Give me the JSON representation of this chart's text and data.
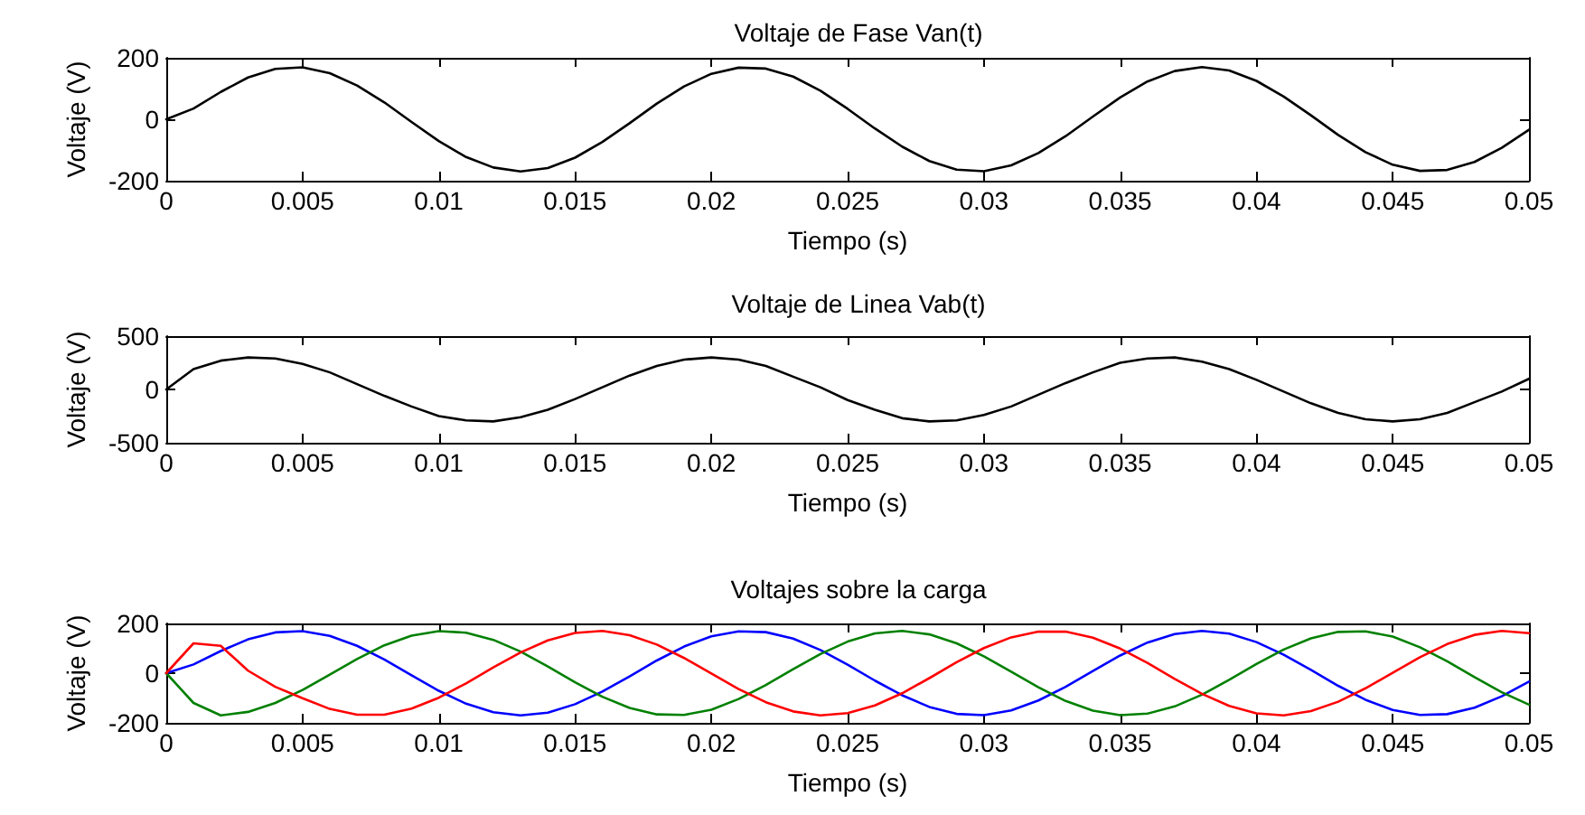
{
  "chart_data": [
    {
      "type": "line",
      "title": "Voltaje de Fase Van(t)",
      "xlabel": "Tiempo (s)",
      "ylabel": "Voltaje (V)",
      "xlim": [
        0,
        0.05
      ],
      "xticks": [
        0,
        0.005,
        0.01,
        0.015,
        0.02,
        0.025,
        0.03,
        0.035,
        0.04,
        0.045,
        0.05
      ],
      "ylim": [
        -200,
        200
      ],
      "yticks": [
        -200,
        0,
        200
      ],
      "marker": "none",
      "line_style": "solid",
      "x": [
        0,
        0.001,
        0.002,
        0.003,
        0.004,
        0.005,
        0.006,
        0.007,
        0.008,
        0.009,
        0.01,
        0.011,
        0.012,
        0.013,
        0.014,
        0.015,
        0.016,
        0.017,
        0.018,
        0.019,
        0.02,
        0.021,
        0.022,
        0.023,
        0.024,
        0.025,
        0.026,
        0.027,
        0.028,
        0.029,
        0.03,
        0.031,
        0.032,
        0.033,
        0.034,
        0.035,
        0.036,
        0.037,
        0.038,
        0.039,
        0.04,
        0.041,
        0.042,
        0.043,
        0.044,
        0.045,
        0.046,
        0.047,
        0.048,
        0.049,
        0.05
      ],
      "series": [
        {
          "color": "#000000",
          "values": [
            0,
            35,
            89,
            136,
            164,
            169,
            150,
            110,
            55,
            -9,
            -71,
            -123,
            -157,
            -170,
            -159,
            -125,
            -74,
            -13,
            51,
            107,
            148,
            168,
            165,
            139,
            93,
            34,
            -30,
            -89,
            -136,
            -164,
            -169,
            -150,
            -110,
            -55,
            9,
            71,
            123,
            157,
            170,
            159,
            125,
            74,
            13,
            -51,
            -107,
            -148,
            -168,
            -165,
            -139,
            -93,
            -34
          ]
        }
      ]
    },
    {
      "type": "line",
      "title": "Voltaje de Linea Vab(t)",
      "xlabel": "Tiempo (s)",
      "ylabel": "Voltaje (V)",
      "xlim": [
        0,
        0.05
      ],
      "xticks": [
        0,
        0.005,
        0.01,
        0.015,
        0.02,
        0.025,
        0.03,
        0.035,
        0.04,
        0.045,
        0.05
      ],
      "ylim": [
        -500,
        500
      ],
      "yticks": [
        -500,
        0,
        500
      ],
      "marker": "none",
      "line_style": "solid",
      "x": [
        0,
        0.001,
        0.002,
        0.003,
        0.004,
        0.005,
        0.006,
        0.007,
        0.008,
        0.009,
        0.01,
        0.011,
        0.012,
        0.013,
        0.014,
        0.015,
        0.016,
        0.017,
        0.018,
        0.019,
        0.02,
        0.021,
        0.022,
        0.023,
        0.024,
        0.025,
        0.026,
        0.027,
        0.028,
        0.029,
        0.03,
        0.031,
        0.032,
        0.033,
        0.034,
        0.035,
        0.036,
        0.037,
        0.038,
        0.039,
        0.04,
        0.041,
        0.042,
        0.043,
        0.044,
        0.045,
        0.046,
        0.047,
        0.048,
        0.049,
        0.05
      ],
      "series": [
        {
          "color": "#000000",
          "values": [
            0,
            190,
            270,
            300,
            290,
            240,
            160,
            50,
            -60,
            -160,
            -250,
            -290,
            -300,
            -260,
            -190,
            -90,
            20,
            130,
            220,
            280,
            300,
            280,
            220,
            120,
            20,
            -100,
            -190,
            -270,
            -300,
            -290,
            -240,
            -160,
            -50,
            60,
            160,
            250,
            290,
            300,
            260,
            190,
            90,
            -20,
            -130,
            -220,
            -280,
            -300,
            -280,
            -220,
            -120,
            -20,
            100
          ]
        }
      ]
    },
    {
      "type": "line",
      "title": "Voltajes sobre la carga",
      "xlabel": "Tiempo (s)",
      "ylabel": "Voltaje (V)",
      "xlim": [
        0,
        0.05
      ],
      "xticks": [
        0,
        0.005,
        0.01,
        0.015,
        0.02,
        0.025,
        0.03,
        0.035,
        0.04,
        0.045,
        0.05
      ],
      "ylim": [
        -200,
        200
      ],
      "yticks": [
        -200,
        0,
        200
      ],
      "marker": "none",
      "line_style": "solid",
      "x": [
        0,
        0.001,
        0.002,
        0.003,
        0.004,
        0.005,
        0.006,
        0.007,
        0.008,
        0.009,
        0.01,
        0.011,
        0.012,
        0.013,
        0.014,
        0.015,
        0.016,
        0.017,
        0.018,
        0.019,
        0.02,
        0.021,
        0.022,
        0.023,
        0.024,
        0.025,
        0.026,
        0.027,
        0.028,
        0.029,
        0.03,
        0.031,
        0.032,
        0.033,
        0.034,
        0.035,
        0.036,
        0.037,
        0.038,
        0.039,
        0.04,
        0.041,
        0.042,
        0.043,
        0.044,
        0.045,
        0.046,
        0.047,
        0.048,
        0.049,
        0.05
      ],
      "series": [
        {
          "color": "#0000ff",
          "values": [
            0,
            35,
            89,
            136,
            164,
            169,
            150,
            110,
            55,
            -9,
            -71,
            -123,
            -157,
            -170,
            -159,
            -125,
            -74,
            -13,
            51,
            107,
            148,
            168,
            165,
            139,
            93,
            34,
            -30,
            -89,
            -136,
            -164,
            -169,
            -150,
            -110,
            -55,
            9,
            71,
            123,
            157,
            170,
            159,
            125,
            74,
            13,
            -51,
            -107,
            -148,
            -168,
            -165,
            -139,
            -93,
            -34
          ]
        },
        {
          "color": "#008000",
          "values": [
            0,
            -120,
            -170,
            -156,
            -120,
            -68,
            -6,
            57,
            112,
            151,
            169,
            163,
            134,
            87,
            27,
            -37,
            -95,
            -140,
            -166,
            -168,
            -147,
            -104,
            -48,
            16,
            77,
            127,
            160,
            170,
            156,
            120,
            68,
            6,
            -57,
            -112,
            -151,
            -169,
            -163,
            -134,
            -87,
            -27,
            37,
            95,
            140,
            166,
            168,
            147,
            104,
            48,
            -16,
            -77,
            -127
          ]
        },
        {
          "color": "#ff0000",
          "values": [
            0,
            120,
            110,
            10,
            -55,
            -101,
            -144,
            -167,
            -167,
            -143,
            -99,
            -41,
            23,
            83,
            132,
            162,
            170,
            153,
            115,
            61,
            -1,
            -64,
            -117,
            -154,
            -170,
            -161,
            -130,
            -81,
            -20,
            44,
            101,
            144,
            167,
            167,
            143,
            99,
            41,
            -23,
            -83,
            -132,
            -162,
            -170,
            -153,
            -115,
            -61,
            1,
            64,
            117,
            154,
            170,
            161
          ]
        }
      ]
    }
  ]
}
